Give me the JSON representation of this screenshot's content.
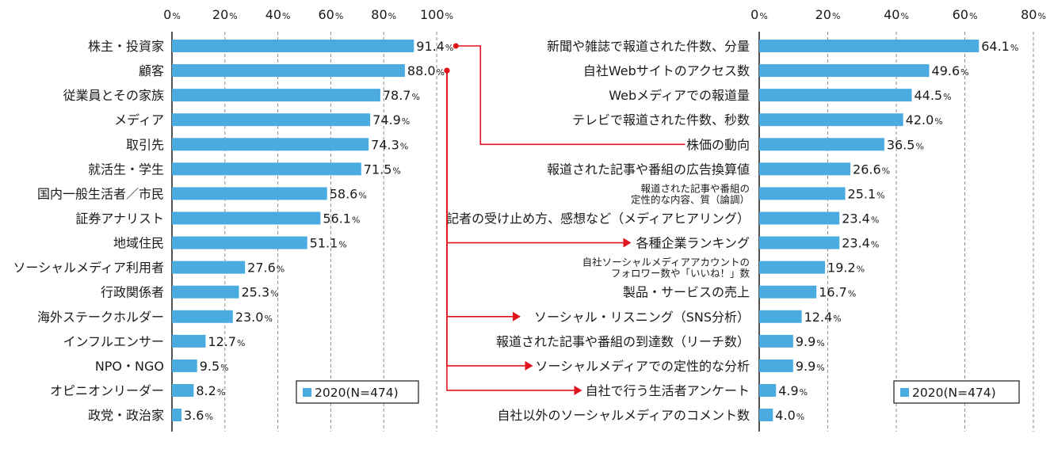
{
  "colors": {
    "bar": "#4aabe0",
    "connector": "#e0141c",
    "grid": "#8c8c8c",
    "axis": "#1a1a1a",
    "text": "#1a1a1a"
  },
  "chart_data": [
    {
      "type": "bar",
      "orientation": "horizontal",
      "categories": [
        "株主・投資家",
        "顧客",
        "従業員とその家族",
        "メディア",
        "取引先",
        "就活生・学生",
        "国内一般生活者／市民",
        "証券アナリスト",
        "地域住民",
        "ソーシャルメディア利用者",
        "行政関係者",
        "海外ステークホルダー",
        "インフルエンサー",
        "NPO・NGO",
        "オピニオンリーダー",
        "政党・政治家"
      ],
      "series": [
        {
          "name": "2020(N=474)",
          "values": [
            91.4,
            88.0,
            78.7,
            74.9,
            74.3,
            71.5,
            58.6,
            56.1,
            51.1,
            27.6,
            25.3,
            23.0,
            12.7,
            9.5,
            8.2,
            3.6
          ]
        }
      ],
      "value_labels": [
        "91.4",
        "88.0",
        "78.7",
        "74.9",
        "74.3",
        "71.5",
        "58.6",
        "56.1",
        "51.1",
        "27.6",
        "25.3",
        "23.0",
        "12.7",
        "9.5",
        "8.2",
        "3.6"
      ],
      "unit_suffix": "%",
      "xlim": [
        0,
        100
      ],
      "ticks": [
        0,
        20,
        40,
        60,
        80,
        100
      ],
      "tick_labels": [
        "0",
        "20",
        "40",
        "60",
        "80",
        "100"
      ],
      "grid": "vertical-dashed",
      "legend": {
        "label": "2020(N=474)",
        "position": "bottom-right"
      }
    },
    {
      "type": "bar",
      "orientation": "horizontal",
      "categories": [
        [
          "新聞や雑誌で報道された件数、分量"
        ],
        [
          "自社Webサイトのアクセス数"
        ],
        [
          "Webメディアでの報道量"
        ],
        [
          "テレビで報道された件数、秒数"
        ],
        [
          "株価の動向"
        ],
        [
          "報道された記事や番組の広告換算値"
        ],
        [
          "報道された記事や番組の",
          "定性的な内容、質（論調）"
        ],
        [
          "記者の受け止め方、感想など（メディアヒアリング）"
        ],
        [
          "各種企業ランキング"
        ],
        [
          "自社ソーシャルメディアアカウントの",
          "フォロワー数や「いいね！」数"
        ],
        [
          "製品・サービスの売上"
        ],
        [
          "ソーシャル・リスニング（SNS分析）"
        ],
        [
          "報道された記事や番組の到達数（リーチ数）"
        ],
        [
          "ソーシャルメディアでの定性的な分析"
        ],
        [
          "自社で行う生活者アンケート"
        ],
        [
          "自社以外のソーシャルメディアのコメント数"
        ]
      ],
      "series": [
        {
          "name": "2020(N=474)",
          "values": [
            64.1,
            49.6,
            44.5,
            42.0,
            36.5,
            26.6,
            25.1,
            23.4,
            23.4,
            19.2,
            16.7,
            12.4,
            9.9,
            9.9,
            4.9,
            4.0
          ]
        }
      ],
      "value_labels": [
        "64.1",
        "49.6",
        "44.5",
        "42.0",
        "36.5",
        "26.6",
        "25.1",
        "23.4",
        "23.4",
        "19.2",
        "16.7",
        "12.4",
        "9.9",
        "9.9",
        "4.9",
        "4.0"
      ],
      "unit_suffix": "%",
      "xlim": [
        0,
        80
      ],
      "ticks": [
        0,
        20,
        40,
        60,
        80
      ],
      "tick_labels": [
        "0",
        "20",
        "40",
        "60",
        "80"
      ],
      "grid": "vertical-dashed",
      "legend": {
        "label": "2020(N=474)",
        "position": "bottom-right"
      }
    }
  ],
  "connectors": [
    {
      "from_chart": 0,
      "from_index": 0,
      "to_index": 4,
      "arrow": false
    },
    {
      "from_chart": 0,
      "from_index": 1,
      "to_index": 8,
      "arrow": true
    },
    {
      "from_chart": 0,
      "from_index": 1,
      "to_index": 11,
      "arrow": true
    },
    {
      "from_chart": 0,
      "from_index": 1,
      "to_index": 13,
      "arrow": true
    },
    {
      "from_chart": 0,
      "from_index": 1,
      "to_index": 14,
      "arrow": true
    }
  ]
}
